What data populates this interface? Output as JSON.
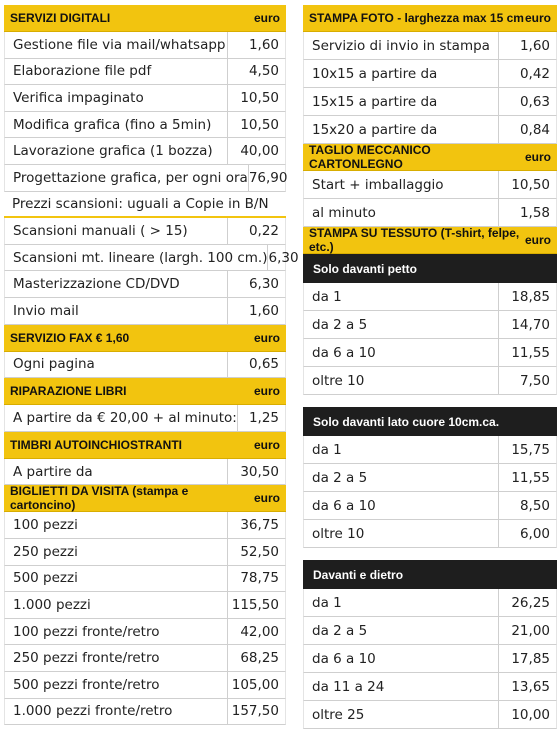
{
  "columns": [
    {
      "items": [
        {
          "heading": "SERVIZI DIGITALI",
          "unit": "euro"
        },
        {
          "label": "Gestione file via mail/whatsapp",
          "price": "1,60"
        },
        {
          "label": "Elaborazione file pdf",
          "price": "4,50"
        },
        {
          "label": "Verifica impaginato",
          "price": "10,50"
        },
        {
          "label": "Modifica grafica (fino a 5min)",
          "price": "10,50"
        },
        {
          "label": "Lavorazione grafica (1 bozza)",
          "price": "40,00"
        },
        {
          "label": "Progettazione grafica, per ogni ora",
          "price": "76,90"
        },
        {
          "note": "Prezzi scansioni: uguali a Copie in B/N"
        },
        {
          "label": "Scansioni manuali ( > 15)",
          "price": "0,22"
        },
        {
          "label": "Scansioni mt. lineare (largh. 100 cm.)",
          "price": "6,30"
        },
        {
          "label": "Masterizzazione CD/DVD",
          "price": "6,30"
        },
        {
          "label": "Invio mail",
          "price": "1,60"
        },
        {
          "heading": "SERVIZIO FAX € 1,60",
          "unit": "euro"
        },
        {
          "label": "Ogni pagina",
          "price": "0,65"
        },
        {
          "heading": "RIPARAZIONE LIBRI",
          "unit": "euro"
        },
        {
          "label": "A partire da € 20,00 + al minuto:",
          "price": "1,25"
        },
        {
          "heading": "TIMBRI AUTOINCHIOSTRANTI",
          "unit": "euro"
        },
        {
          "label": "A partire da",
          "price": "30,50"
        },
        {
          "heading": "BIGLIETTI DA VISITA (stampa e cartoncino)",
          "unit": "euro"
        },
        {
          "label": "100 pezzi",
          "price": "36,75"
        },
        {
          "label": "250 pezzi",
          "price": "52,50"
        },
        {
          "label": "500 pezzi",
          "price": "78,75"
        },
        {
          "label": "1.000 pezzi",
          "price": "115,50"
        },
        {
          "label": "100 pezzi fronte/retro",
          "price": "42,00"
        },
        {
          "label": "250 pezzi fronte/retro",
          "price": "68,25"
        },
        {
          "label": "500 pezzi fronte/retro",
          "price": "105,00"
        },
        {
          "label": "1.000 pezzi fronte/retro",
          "price": "157,50"
        }
      ]
    },
    {
      "items": [
        {
          "heading": "STAMPA FOTO - larghezza max 15 cm",
          "unit": "euro"
        },
        {
          "label": "Servizio di invio in stampa",
          "price": "1,60"
        },
        {
          "label": "10x15 a partire da",
          "price": "0,42"
        },
        {
          "label": "15x15 a partire da",
          "price": "0,63"
        },
        {
          "label": "15x20 a partire da",
          "price": "0,84"
        },
        {
          "heading": "TAGLIO MECCANICO CARTONLEGNO",
          "unit": "euro"
        },
        {
          "label": "Start + imballaggio",
          "price": "10,50"
        },
        {
          "label": "al minuto",
          "price": "1,58"
        },
        {
          "heading": "STAMPA SU TESSUTO (T-shirt, felpe, etc.)",
          "unit": "euro"
        },
        {
          "subheading": "Solo davanti petto"
        },
        {
          "label": "da 1",
          "price": "18,85"
        },
        {
          "label": "da 2 a 5",
          "price": "14,70"
        },
        {
          "label": "da 6 a 10",
          "price": "11,55"
        },
        {
          "label": "oltre 10",
          "price": "7,50"
        },
        {
          "subheading": "Solo davanti lato cuore 10cm.ca."
        },
        {
          "label": "da 1",
          "price": "15,75"
        },
        {
          "label": "da 2 a 5",
          "price": "11,55"
        },
        {
          "label": "da 6 a 10",
          "price": "8,50"
        },
        {
          "label": "oltre 10",
          "price": "6,00"
        },
        {
          "subheading": "Davanti e dietro"
        },
        {
          "label": "da 1",
          "price": "26,25"
        },
        {
          "label": "da 2 a 5",
          "price": "21,00"
        },
        {
          "label": "da 6 a 10",
          "price": "17,85"
        },
        {
          "label": "da 11 a 24",
          "price": "13,65"
        },
        {
          "label": "oltre 25",
          "price": "10,00"
        }
      ]
    }
  ]
}
